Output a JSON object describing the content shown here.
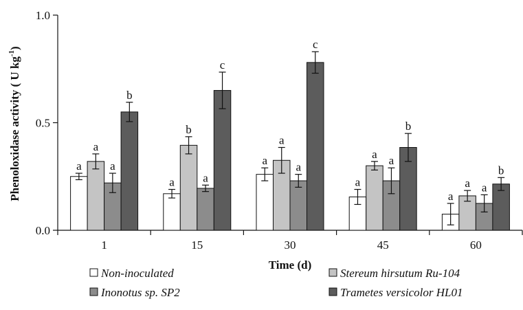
{
  "chart_data": {
    "type": "bar",
    "categories": [
      "1",
      "15",
      "30",
      "45",
      "60"
    ],
    "series": [
      {
        "name": "Non-inoculated",
        "color": "#ffffff",
        "values": [
          0.25,
          0.17,
          0.26,
          0.155,
          0.075
        ],
        "errors": [
          0.015,
          0.02,
          0.03,
          0.035,
          0.05
        ],
        "letters": [
          "a",
          "a",
          "a",
          "a",
          "a"
        ]
      },
      {
        "name": "Stereum hirsutum Ru-104",
        "color": "#c4c4c4",
        "values": [
          0.32,
          0.395,
          0.325,
          0.3,
          0.16
        ],
        "errors": [
          0.035,
          0.04,
          0.06,
          0.02,
          0.025
        ],
        "letters": [
          "a",
          "b",
          "a",
          "a",
          "a"
        ]
      },
      {
        "name": "Inonotus sp. SP2",
        "color": "#8c8c8c",
        "values": [
          0.22,
          0.195,
          0.23,
          0.23,
          0.125
        ],
        "errors": [
          0.045,
          0.015,
          0.03,
          0.06,
          0.04
        ],
        "letters": [
          "a",
          "a",
          "a",
          "a",
          "a"
        ]
      },
      {
        "name": "Trametes versicolor HL01",
        "color": "#5c5c5c",
        "values": [
          0.55,
          0.65,
          0.78,
          0.385,
          0.215
        ],
        "errors": [
          0.045,
          0.085,
          0.05,
          0.065,
          0.03
        ],
        "letters": [
          "b",
          "c",
          "c",
          "b",
          "b"
        ]
      }
    ],
    "xlabel": "Time (d)",
    "ylabel": "Phenoloxidase activity ( U kg",
    "ylabel_sup": "-1",
    "ylabel_end": ")",
    "ylim": [
      0,
      1.0
    ],
    "yticks": [
      "0.0",
      "0.5",
      "1.0"
    ],
    "ytick_values": [
      0,
      0.5,
      1.0
    ],
    "grid": false,
    "legend_position": "bottom"
  }
}
